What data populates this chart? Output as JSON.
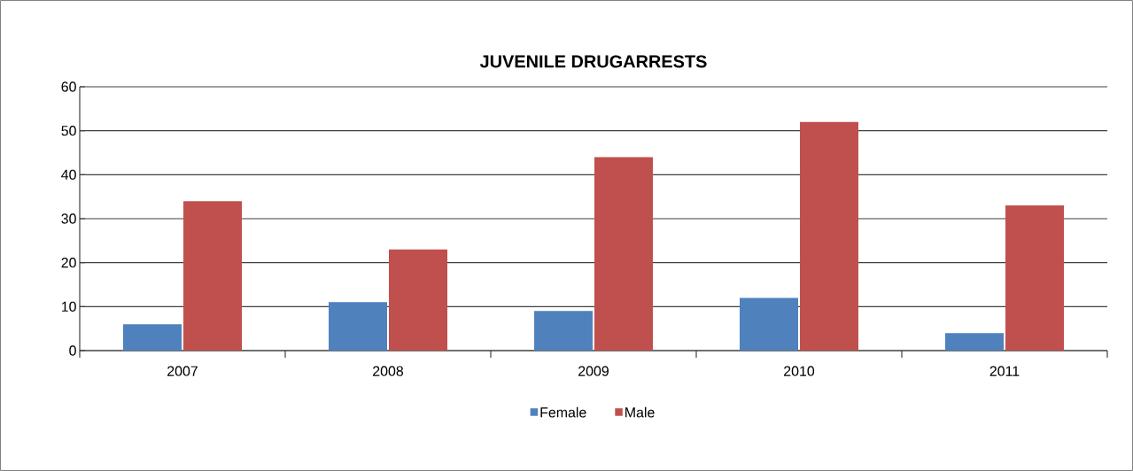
{
  "chart_data": {
    "type": "bar",
    "title": "JUVENILE DRUGARRESTS",
    "categories": [
      "2007",
      "2008",
      "2009",
      "2010",
      "2011"
    ],
    "series": [
      {
        "name": "Female",
        "color": "#4f81bd",
        "values": [
          6,
          11,
          9,
          12,
          4
        ]
      },
      {
        "name": "Male",
        "color": "#c0504d",
        "values": [
          34,
          23,
          44,
          52,
          33
        ]
      }
    ],
    "ylim": [
      0,
      60
    ],
    "yticks": [
      0,
      10,
      20,
      30,
      40,
      50,
      60
    ],
    "grid": "y",
    "legend": "bottom"
  }
}
